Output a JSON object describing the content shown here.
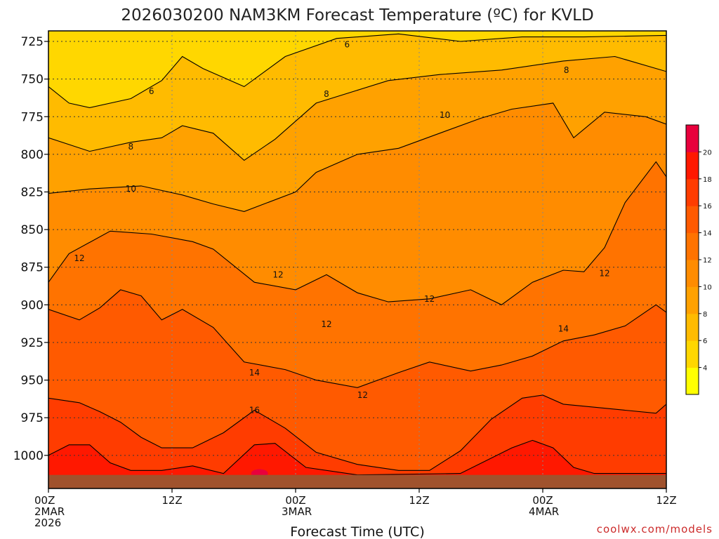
{
  "chart_data": {
    "type": "heatmap",
    "title": "2026030200 NAM3KM Forecast Temperature (ºC) for KVLD",
    "xlabel": "Forecast Time (UTC)",
    "ylabel": "",
    "credit": "coolwx.com/models",
    "x_ticks": [
      {
        "hour": 0,
        "lines": [
          "00Z",
          "2MAR",
          "2026"
        ]
      },
      {
        "hour": 12,
        "lines": [
          "12Z"
        ]
      },
      {
        "hour": 24,
        "lines": [
          "00Z",
          "3MAR"
        ]
      },
      {
        "hour": 36,
        "lines": [
          "12Z"
        ]
      },
      {
        "hour": 48,
        "lines": [
          "00Z",
          "4MAR"
        ]
      },
      {
        "hour": 60,
        "lines": [
          "12Z"
        ]
      }
    ],
    "xlim": [
      0,
      60
    ],
    "y_ticks": [
      725,
      750,
      775,
      800,
      825,
      850,
      875,
      900,
      925,
      950,
      975,
      1000
    ],
    "ylim": [
      1022,
      718
    ],
    "surface_pressure": 1013,
    "grid": true,
    "contour_interval": 2,
    "colorbar": {
      "ticks": [
        4,
        6,
        8,
        10,
        12,
        14,
        16,
        18,
        20
      ],
      "colors": [
        "#ffff00",
        "#ffd700",
        "#ffbb00",
        "#ffa100",
        "#ff8c00",
        "#ff7300",
        "#ff5a00",
        "#ff3c00",
        "#ff1800",
        "#e8003c"
      ]
    },
    "isotherms": [
      {
        "level": 6,
        "points": [
          [
            0,
            755
          ],
          [
            2,
            766
          ],
          [
            4,
            769
          ],
          [
            8,
            763
          ],
          [
            11,
            751
          ],
          [
            13,
            735
          ],
          [
            15,
            743
          ],
          [
            19,
            755
          ],
          [
            23,
            735
          ],
          [
            28,
            723
          ],
          [
            34,
            720
          ],
          [
            40,
            725
          ],
          [
            46,
            722
          ],
          [
            52,
            722
          ],
          [
            60,
            721
          ]
        ]
      },
      {
        "level": 8,
        "points": [
          [
            0,
            789
          ],
          [
            4,
            798
          ],
          [
            8,
            792
          ],
          [
            11,
            789
          ],
          [
            13,
            781
          ],
          [
            16,
            786
          ],
          [
            19,
            804
          ],
          [
            22,
            790
          ],
          [
            26,
            766
          ],
          [
            33,
            751
          ],
          [
            38,
            747
          ],
          [
            44,
            744
          ],
          [
            50,
            738
          ],
          [
            55,
            735
          ],
          [
            60,
            745
          ]
        ]
      },
      {
        "level": 10,
        "points": [
          [
            0,
            826
          ],
          [
            4,
            823
          ],
          [
            9,
            821
          ],
          [
            13,
            827
          ],
          [
            16,
            833
          ],
          [
            19,
            838
          ],
          [
            24,
            825
          ],
          [
            26,
            812
          ],
          [
            30,
            800
          ],
          [
            34,
            796
          ],
          [
            38,
            786
          ],
          [
            42,
            776
          ],
          [
            45,
            770
          ],
          [
            49,
            766
          ],
          [
            51,
            789
          ],
          [
            54,
            772
          ],
          [
            58,
            775
          ],
          [
            60,
            780
          ]
        ]
      },
      {
        "level": 12,
        "points": [
          [
            0,
            885
          ],
          [
            2,
            866
          ],
          [
            6,
            851
          ],
          [
            10,
            853
          ],
          [
            14,
            858
          ],
          [
            16,
            863
          ],
          [
            20,
            885
          ],
          [
            24,
            890
          ],
          [
            27,
            880
          ],
          [
            30,
            892
          ],
          [
            33,
            898
          ],
          [
            37,
            896
          ],
          [
            41,
            890
          ],
          [
            44,
            900
          ],
          [
            47,
            885
          ],
          [
            50,
            877
          ],
          [
            52,
            878
          ],
          [
            54,
            862
          ],
          [
            56,
            832
          ],
          [
            59,
            805
          ],
          [
            60,
            815
          ]
        ]
      },
      {
        "level": 14,
        "points": [
          [
            0,
            903
          ],
          [
            3,
            910
          ],
          [
            5,
            902
          ],
          [
            7,
            890
          ],
          [
            9,
            894
          ],
          [
            11,
            910
          ],
          [
            13,
            903
          ],
          [
            16,
            915
          ],
          [
            19,
            938
          ],
          [
            23,
            943
          ],
          [
            26,
            950
          ],
          [
            30,
            955
          ],
          [
            34,
            945
          ],
          [
            37,
            938
          ],
          [
            41,
            944
          ],
          [
            44,
            940
          ],
          [
            47,
            934
          ],
          [
            50,
            924
          ],
          [
            53,
            920
          ],
          [
            56,
            914
          ],
          [
            59,
            900
          ],
          [
            60,
            905
          ]
        ]
      },
      {
        "level": 16,
        "points": [
          [
            0,
            962
          ],
          [
            3,
            965
          ],
          [
            5,
            971
          ],
          [
            7,
            978
          ],
          [
            9,
            988
          ],
          [
            11,
            995
          ],
          [
            14,
            995
          ],
          [
            17,
            985
          ],
          [
            20,
            970
          ],
          [
            23,
            982
          ],
          [
            26,
            998
          ],
          [
            30,
            1006
          ],
          [
            34,
            1010
          ],
          [
            37,
            1010
          ],
          [
            40,
            997
          ],
          [
            43,
            976
          ],
          [
            46,
            962
          ],
          [
            48,
            960
          ],
          [
            50,
            966
          ],
          [
            53,
            968
          ],
          [
            56,
            970
          ],
          [
            59,
            972
          ],
          [
            60,
            966
          ]
        ]
      },
      {
        "level": 18,
        "points": [
          [
            0,
            1000
          ],
          [
            2,
            993
          ],
          [
            4,
            993
          ],
          [
            6,
            1005
          ],
          [
            8,
            1010
          ],
          [
            11,
            1010
          ],
          [
            14,
            1007
          ],
          [
            17,
            1012
          ],
          [
            20,
            993
          ],
          [
            22,
            992
          ],
          [
            25,
            1008
          ],
          [
            30,
            1013
          ],
          [
            40,
            1012
          ],
          [
            45,
            995
          ],
          [
            47,
            990
          ],
          [
            49,
            995
          ],
          [
            51,
            1008
          ],
          [
            53,
            1012
          ],
          [
            60,
            1012
          ]
        ]
      }
    ],
    "contour_labels": [
      {
        "text": "6",
        "x": 29,
        "p": 727
      },
      {
        "text": "6",
        "x": 10,
        "p": 758
      },
      {
        "text": "8",
        "x": 50.3,
        "p": 744
      },
      {
        "text": "8",
        "x": 27,
        "p": 760
      },
      {
        "text": "8",
        "x": 8,
        "p": 795
      },
      {
        "text": "10",
        "x": 38.5,
        "p": 774
      },
      {
        "text": "10",
        "x": 8,
        "p": 823
      },
      {
        "text": "12",
        "x": 3,
        "p": 869
      },
      {
        "text": "12",
        "x": 22.3,
        "p": 880
      },
      {
        "text": "12",
        "x": 37,
        "p": 896
      },
      {
        "text": "12",
        "x": 54,
        "p": 879
      },
      {
        "text": "12",
        "x": 27,
        "p": 913
      },
      {
        "text": "12",
        "x": 30.5,
        "p": 960
      },
      {
        "text": "14",
        "x": 50,
        "p": 916
      },
      {
        "text": "14",
        "x": 20,
        "p": 945
      },
      {
        "text": "16",
        "x": 20,
        "p": 970
      }
    ]
  }
}
